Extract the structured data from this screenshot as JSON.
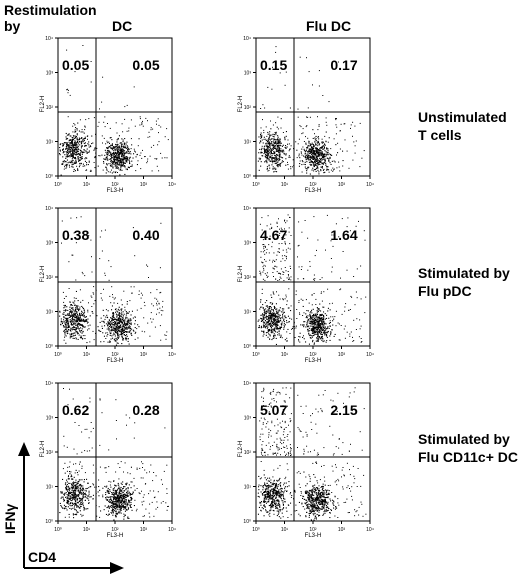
{
  "header": {
    "restim_line1": "Restimulation",
    "restim_line2": "by",
    "col_dc": "DC",
    "col_fludc": "Flu DC"
  },
  "row_labels": [
    [
      "Unstimulated",
      "T cells"
    ],
    [
      "Stimulated by",
      "Flu pDC"
    ],
    [
      "Stimulated by",
      "Flu CD11c+ DC"
    ]
  ],
  "axes": {
    "y_arrow_label": "IFNγ",
    "x_arrow_label": "CD4",
    "panel_xlabel": "FL3-H",
    "panel_ylabel": "FL2-H",
    "x_ticks": [
      "10⁰",
      "10¹",
      "10²",
      "10³",
      "10⁴"
    ],
    "y_ticks": [
      "10⁰",
      "10¹",
      "10²",
      "10³",
      "10⁴"
    ]
  },
  "chart_data": {
    "type": "scatter",
    "title": "",
    "xlabel": "FL3-H",
    "ylabel": "FL2-H",
    "xscale": "log",
    "yscale": "log",
    "xlim": [
      1,
      10000
    ],
    "ylim": [
      1,
      10000
    ],
    "columns": [
      "DC",
      "Flu DC"
    ],
    "rows": [
      "Unstimulated T cells",
      "Stimulated by Flu pDC",
      "Stimulated by Flu CD11c+ DC"
    ],
    "panels": [
      {
        "row": 0,
        "col": 0,
        "upper_left_pct": "0.05",
        "upper_right_pct": "0.05"
      },
      {
        "row": 0,
        "col": 1,
        "upper_left_pct": "0.15",
        "upper_right_pct": "0.17"
      },
      {
        "row": 1,
        "col": 0,
        "upper_left_pct": "0.38",
        "upper_right_pct": "0.40"
      },
      {
        "row": 1,
        "col": 1,
        "upper_left_pct": "4.67",
        "upper_right_pct": "1.64"
      },
      {
        "row": 2,
        "col": 0,
        "upper_left_pct": "0.62",
        "upper_right_pct": "0.28"
      },
      {
        "row": 2,
        "col": 1,
        "upper_left_pct": "5.07",
        "upper_right_pct": "2.15"
      }
    ]
  }
}
